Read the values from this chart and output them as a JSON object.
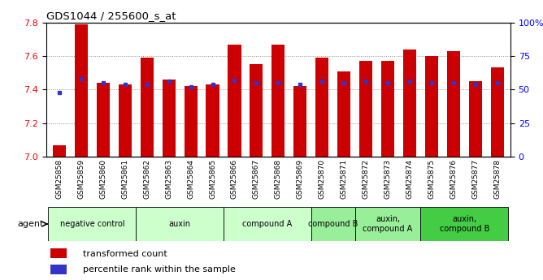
{
  "title": "GDS1044 / 255600_s_at",
  "samples": [
    "GSM25858",
    "GSM25859",
    "GSM25860",
    "GSM25861",
    "GSM25862",
    "GSM25863",
    "GSM25864",
    "GSM25865",
    "GSM25866",
    "GSM25867",
    "GSM25868",
    "GSM25869",
    "GSM25870",
    "GSM25871",
    "GSM25872",
    "GSM25873",
    "GSM25874",
    "GSM25875",
    "GSM25876",
    "GSM25877",
    "GSM25878"
  ],
  "transformed_count": [
    7.07,
    7.79,
    7.44,
    7.43,
    7.59,
    7.46,
    7.42,
    7.43,
    7.67,
    7.55,
    7.67,
    7.42,
    7.59,
    7.51,
    7.57,
    7.57,
    7.64,
    7.6,
    7.63,
    7.45,
    7.53
  ],
  "percentile_rank": [
    48,
    58,
    55,
    54,
    54,
    56,
    52,
    54,
    57,
    55,
    55,
    54,
    56,
    55,
    56,
    55,
    56,
    55,
    55,
    54,
    55
  ],
  "ymin": 7.0,
  "ymax": 7.8,
  "y2min": 0,
  "y2max": 100,
  "yticks": [
    7.0,
    7.2,
    7.4,
    7.6,
    7.8
  ],
  "y2ticks": [
    0,
    25,
    50,
    75,
    100
  ],
  "bar_color": "#cc0000",
  "blue_color": "#3333cc",
  "agent_groups": [
    {
      "label": "negative control",
      "start": 0,
      "end": 3,
      "color": "#ccffcc"
    },
    {
      "label": "auxin",
      "start": 4,
      "end": 7,
      "color": "#ccffcc"
    },
    {
      "label": "compound A",
      "start": 8,
      "end": 11,
      "color": "#ccffcc"
    },
    {
      "label": "compound B",
      "start": 12,
      "end": 13,
      "color": "#99ee99"
    },
    {
      "label": "auxin,\ncompound A",
      "start": 14,
      "end": 16,
      "color": "#99ee99"
    },
    {
      "label": "auxin,\ncompound B",
      "start": 17,
      "end": 20,
      "color": "#44cc44"
    }
  ],
  "legend_red": "transformed count",
  "legend_blue": "percentile rank within the sample",
  "agent_label": "agent"
}
